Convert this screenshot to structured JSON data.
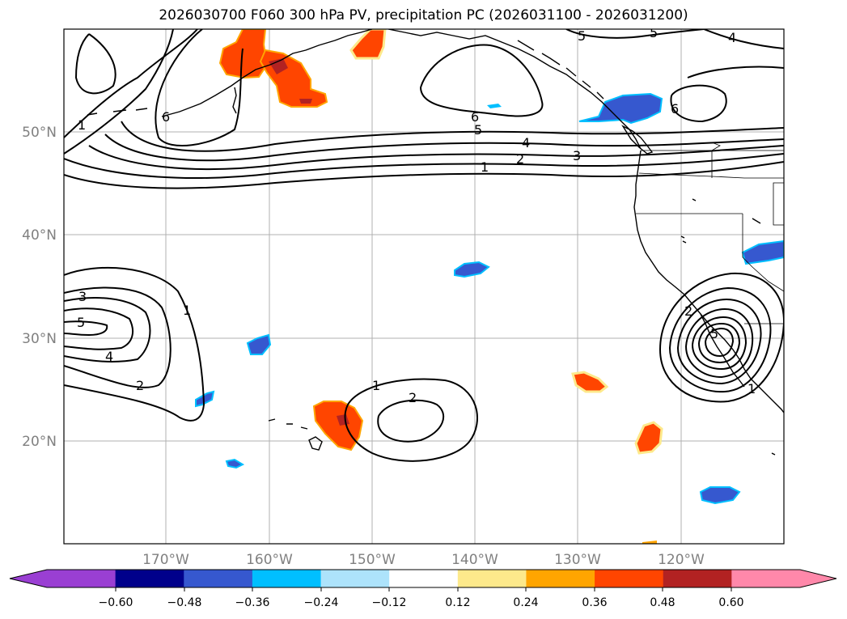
{
  "title": "2026030700 F060 300 hPa PV, precipitation PC (2026031100 - 2026031200)",
  "axes": {
    "lat_labels": [
      "50°N",
      "40°N",
      "30°N",
      "20°N"
    ],
    "lon_labels": [
      "170°W",
      "160°W",
      "150°W",
      "140°W",
      "130°W",
      "120°W"
    ]
  },
  "contour_labels": [
    {
      "text": "1"
    },
    {
      "text": "6"
    },
    {
      "text": "5"
    },
    {
      "text": "5"
    },
    {
      "text": "4"
    },
    {
      "text": "6"
    },
    {
      "text": "5"
    },
    {
      "text": "4"
    },
    {
      "text": "2"
    },
    {
      "text": "3"
    },
    {
      "text": "1"
    },
    {
      "text": "6"
    },
    {
      "text": "3"
    },
    {
      "text": "5"
    },
    {
      "text": "4"
    },
    {
      "text": "2"
    },
    {
      "text": "1"
    },
    {
      "text": "1"
    },
    {
      "text": "2"
    },
    {
      "text": "2"
    },
    {
      "text": "1"
    },
    {
      "text": "5"
    }
  ],
  "colorbar": {
    "colors": [
      "#9a3fd3",
      "#00008b",
      "#3658cf",
      "#00bfff",
      "#ade3fb",
      "#ffffff",
      "#fde98b",
      "#ffa500",
      "#ff4500",
      "#b22222",
      "#ff88aa",
      "#ff88aa"
    ],
    "under_color": "#9a3fd3",
    "over_color": "#ff88aa",
    "ticks": [
      "−0.60",
      "−0.48",
      "−0.36",
      "−0.24",
      "−0.12",
      "0.12",
      "0.24",
      "0.36",
      "0.48",
      "0.60"
    ]
  },
  "colors": {
    "positive_high": "#ff4500",
    "positive_mid": "#ffa500",
    "positive_low": "#fde98b",
    "positive_core": "#b22222",
    "negative_mid": "#3658cf",
    "negative_light": "#00bfff",
    "negative_faint": "#ade3fb"
  }
}
